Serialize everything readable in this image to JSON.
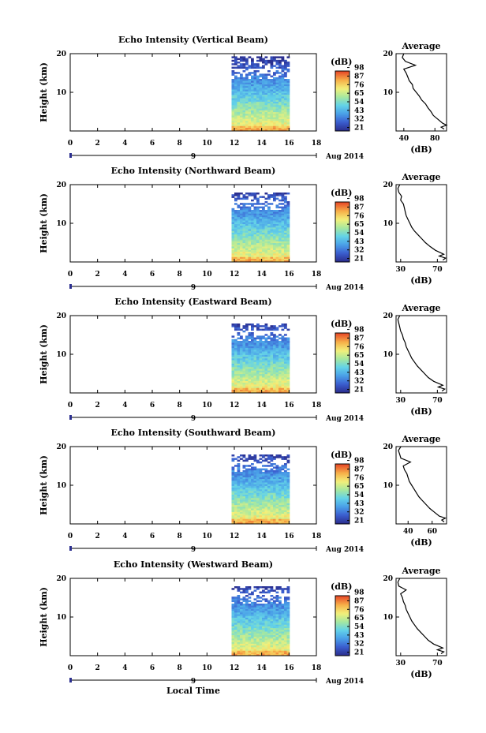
{
  "figure": {
    "xlabel": "Local Time",
    "date_label": "Aug 2014",
    "day_label": "9",
    "cbar_label": "(dB)",
    "avg_title": "Average",
    "avg_xlabel": "(dB)",
    "ylabel": "Height (km)"
  },
  "colors": {
    "scale": [
      "#2b2f8f",
      "#3b5fd0",
      "#4aa0e8",
      "#63d2e8",
      "#a6e8a0",
      "#f2f07a",
      "#f7b24a",
      "#e8502a"
    ]
  },
  "chart_data": [
    {
      "type": "heatmap",
      "title": "Echo Intensity (Vertical Beam)",
      "xlim": [
        0,
        18
      ],
      "ylim": [
        0,
        20
      ],
      "xticks": [
        "0",
        "2",
        "4",
        "6",
        "8",
        "10",
        "12",
        "14",
        "16",
        "18"
      ],
      "yticks": [
        "10",
        "20"
      ],
      "data_x_range": [
        11.8,
        16.0
      ],
      "colorbar_ticks": [
        "21",
        "32",
        "43",
        "54",
        "65",
        "76",
        "87",
        "98"
      ],
      "average": {
        "xticks": [
          "40",
          "80"
        ],
        "xlim": [
          30,
          95
        ],
        "ylim": [
          0,
          20
        ],
        "heights": [
          0.5,
          1,
          1.5,
          2,
          3,
          4,
          5,
          6,
          7,
          8,
          9,
          10,
          11,
          12,
          13,
          14,
          15,
          16,
          17,
          18,
          19,
          20
        ],
        "values": [
          92,
          88,
          95,
          90,
          84,
          78,
          75,
          71,
          68,
          63,
          60,
          56,
          52,
          51,
          47,
          45,
          43,
          40,
          55,
          42,
          38,
          40
        ]
      }
    },
    {
      "type": "heatmap",
      "title": "Echo Intensity (Northward Beam)",
      "xlim": [
        0,
        18
      ],
      "ylim": [
        0,
        20
      ],
      "xticks": [
        "0",
        "2",
        "4",
        "6",
        "8",
        "10",
        "12",
        "14",
        "16",
        "18"
      ],
      "yticks": [
        "10",
        "20"
      ],
      "data_x_range": [
        11.8,
        16.0
      ],
      "colorbar_ticks": [
        "21",
        "32",
        "43",
        "54",
        "65",
        "76",
        "87",
        "98"
      ],
      "average": {
        "xticks": [
          "30",
          "70"
        ],
        "xlim": [
          25,
          80
        ],
        "ylim": [
          0,
          20
        ],
        "heights": [
          0.5,
          1,
          1.5,
          2,
          3,
          4,
          5,
          6,
          7,
          8,
          9,
          10,
          11,
          12,
          13,
          14,
          15,
          16,
          17,
          18,
          19,
          20
        ],
        "values": [
          76,
          79,
          72,
          77,
          68,
          62,
          57,
          53,
          49,
          45,
          42,
          40,
          38,
          36,
          35,
          34,
          33,
          30,
          31,
          28,
          27,
          29
        ]
      }
    },
    {
      "type": "heatmap",
      "title": "Echo Intensity (Eastward Beam)",
      "xlim": [
        0,
        18
      ],
      "ylim": [
        0,
        20
      ],
      "xticks": [
        "0",
        "2",
        "4",
        "6",
        "8",
        "10",
        "12",
        "14",
        "16",
        "18"
      ],
      "yticks": [
        "10",
        "20"
      ],
      "data_x_range": [
        11.8,
        16.0
      ],
      "colorbar_ticks": [
        "21",
        "32",
        "43",
        "54",
        "65",
        "76",
        "87",
        "98"
      ],
      "average": {
        "xticks": [
          "30",
          "70"
        ],
        "xlim": [
          25,
          80
        ],
        "ylim": [
          0,
          20
        ],
        "heights": [
          0.5,
          1,
          1.5,
          2,
          3,
          4,
          5,
          6,
          7,
          8,
          9,
          10,
          11,
          12,
          13,
          14,
          15,
          16,
          17,
          18,
          19,
          20
        ],
        "values": [
          75,
          78,
          71,
          76,
          66,
          60,
          56,
          52,
          48,
          45,
          42,
          40,
          38,
          36,
          35,
          33,
          32,
          30,
          29,
          28,
          27,
          29
        ]
      }
    },
    {
      "type": "heatmap",
      "title": "Echo Intensity (Southward Beam)",
      "xlim": [
        0,
        18
      ],
      "ylim": [
        0,
        20
      ],
      "xticks": [
        "0",
        "2",
        "4",
        "6",
        "8",
        "10",
        "12",
        "14",
        "16",
        "18"
      ],
      "yticks": [
        "10",
        "20"
      ],
      "data_x_range": [
        11.8,
        16.0
      ],
      "colorbar_ticks": [
        "21",
        "32",
        "43",
        "54",
        "65",
        "76",
        "87",
        "98"
      ],
      "average": {
        "xticks": [
          "40",
          "60"
        ],
        "xlim": [
          30,
          72
        ],
        "ylim": [
          0,
          20
        ],
        "heights": [
          0.5,
          1,
          1.5,
          2,
          3,
          4,
          5,
          6,
          7,
          8,
          9,
          10,
          11,
          12,
          13,
          14,
          15,
          16,
          17,
          18,
          19,
          20
        ],
        "values": [
          70,
          68,
          71,
          66,
          62,
          58,
          55,
          52,
          49,
          47,
          45,
          43,
          41,
          40,
          39,
          37,
          36,
          42,
          34,
          33,
          32,
          34
        ]
      }
    },
    {
      "type": "heatmap",
      "title": "Echo Intensity (Westward Beam)",
      "xlim": [
        0,
        18
      ],
      "ylim": [
        0,
        20
      ],
      "xticks": [
        "0",
        "2",
        "4",
        "6",
        "8",
        "10",
        "12",
        "14",
        "16",
        "18"
      ],
      "yticks": [
        "10",
        "20"
      ],
      "data_x_range": [
        11.8,
        16.0
      ],
      "colorbar_ticks": [
        "21",
        "32",
        "43",
        "54",
        "65",
        "76",
        "87",
        "98"
      ],
      "average": {
        "xticks": [
          "30",
          "70"
        ],
        "xlim": [
          25,
          80
        ],
        "ylim": [
          0,
          20
        ],
        "heights": [
          0.5,
          1,
          1.5,
          2,
          3,
          4,
          5,
          6,
          7,
          8,
          9,
          10,
          11,
          12,
          13,
          14,
          15,
          16,
          17,
          18,
          19,
          20
        ],
        "values": [
          74,
          77,
          70,
          76,
          66,
          60,
          56,
          52,
          48,
          45,
          42,
          40,
          38,
          36,
          35,
          33,
          32,
          30,
          36,
          28,
          27,
          29
        ]
      }
    }
  ]
}
